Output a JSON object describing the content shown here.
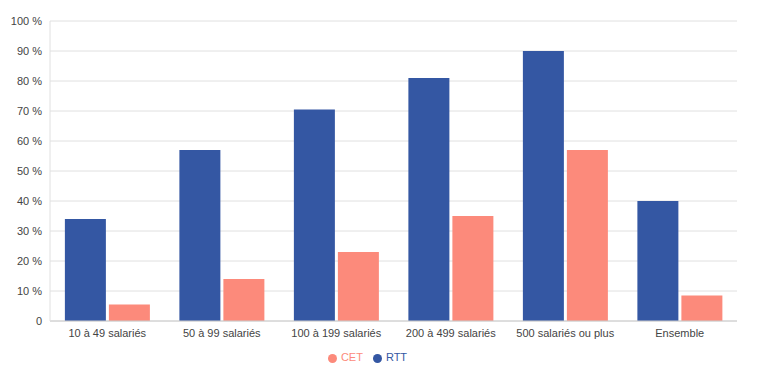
{
  "chart_data": {
    "type": "bar",
    "categories": [
      "10 à 49 salariés",
      "50 à 99 salariés",
      "100 à 199 salariés",
      "200 à 499 salariés",
      "500 salariés ou plus",
      "Ensemble"
    ],
    "series": [
      {
        "name": "RTT",
        "color": "#3457a3",
        "values": [
          34,
          57,
          70.5,
          81,
          90,
          40
        ]
      },
      {
        "name": "CET",
        "color": "#fc8a7b",
        "values": [
          5.5,
          14,
          23,
          35,
          57,
          8.5
        ]
      }
    ],
    "ylim": [
      0,
      100
    ],
    "yticks": [
      0,
      {
        "value": 10,
        "label": "10 %"
      },
      {
        "value": 20,
        "label": "20 %"
      },
      {
        "value": 30,
        "label": "30 %"
      },
      {
        "value": 40,
        "label": "40 %"
      },
      {
        "value": 50,
        "label": "50 %"
      },
      {
        "value": 60,
        "label": "60 %"
      },
      {
        "value": 70,
        "label": "70 %"
      },
      {
        "value": 80,
        "label": "80 %"
      },
      {
        "value": 90,
        "label": "90 %"
      },
      {
        "value": 100,
        "label": "100 %"
      }
    ],
    "grid": true,
    "legend": "bottom"
  }
}
